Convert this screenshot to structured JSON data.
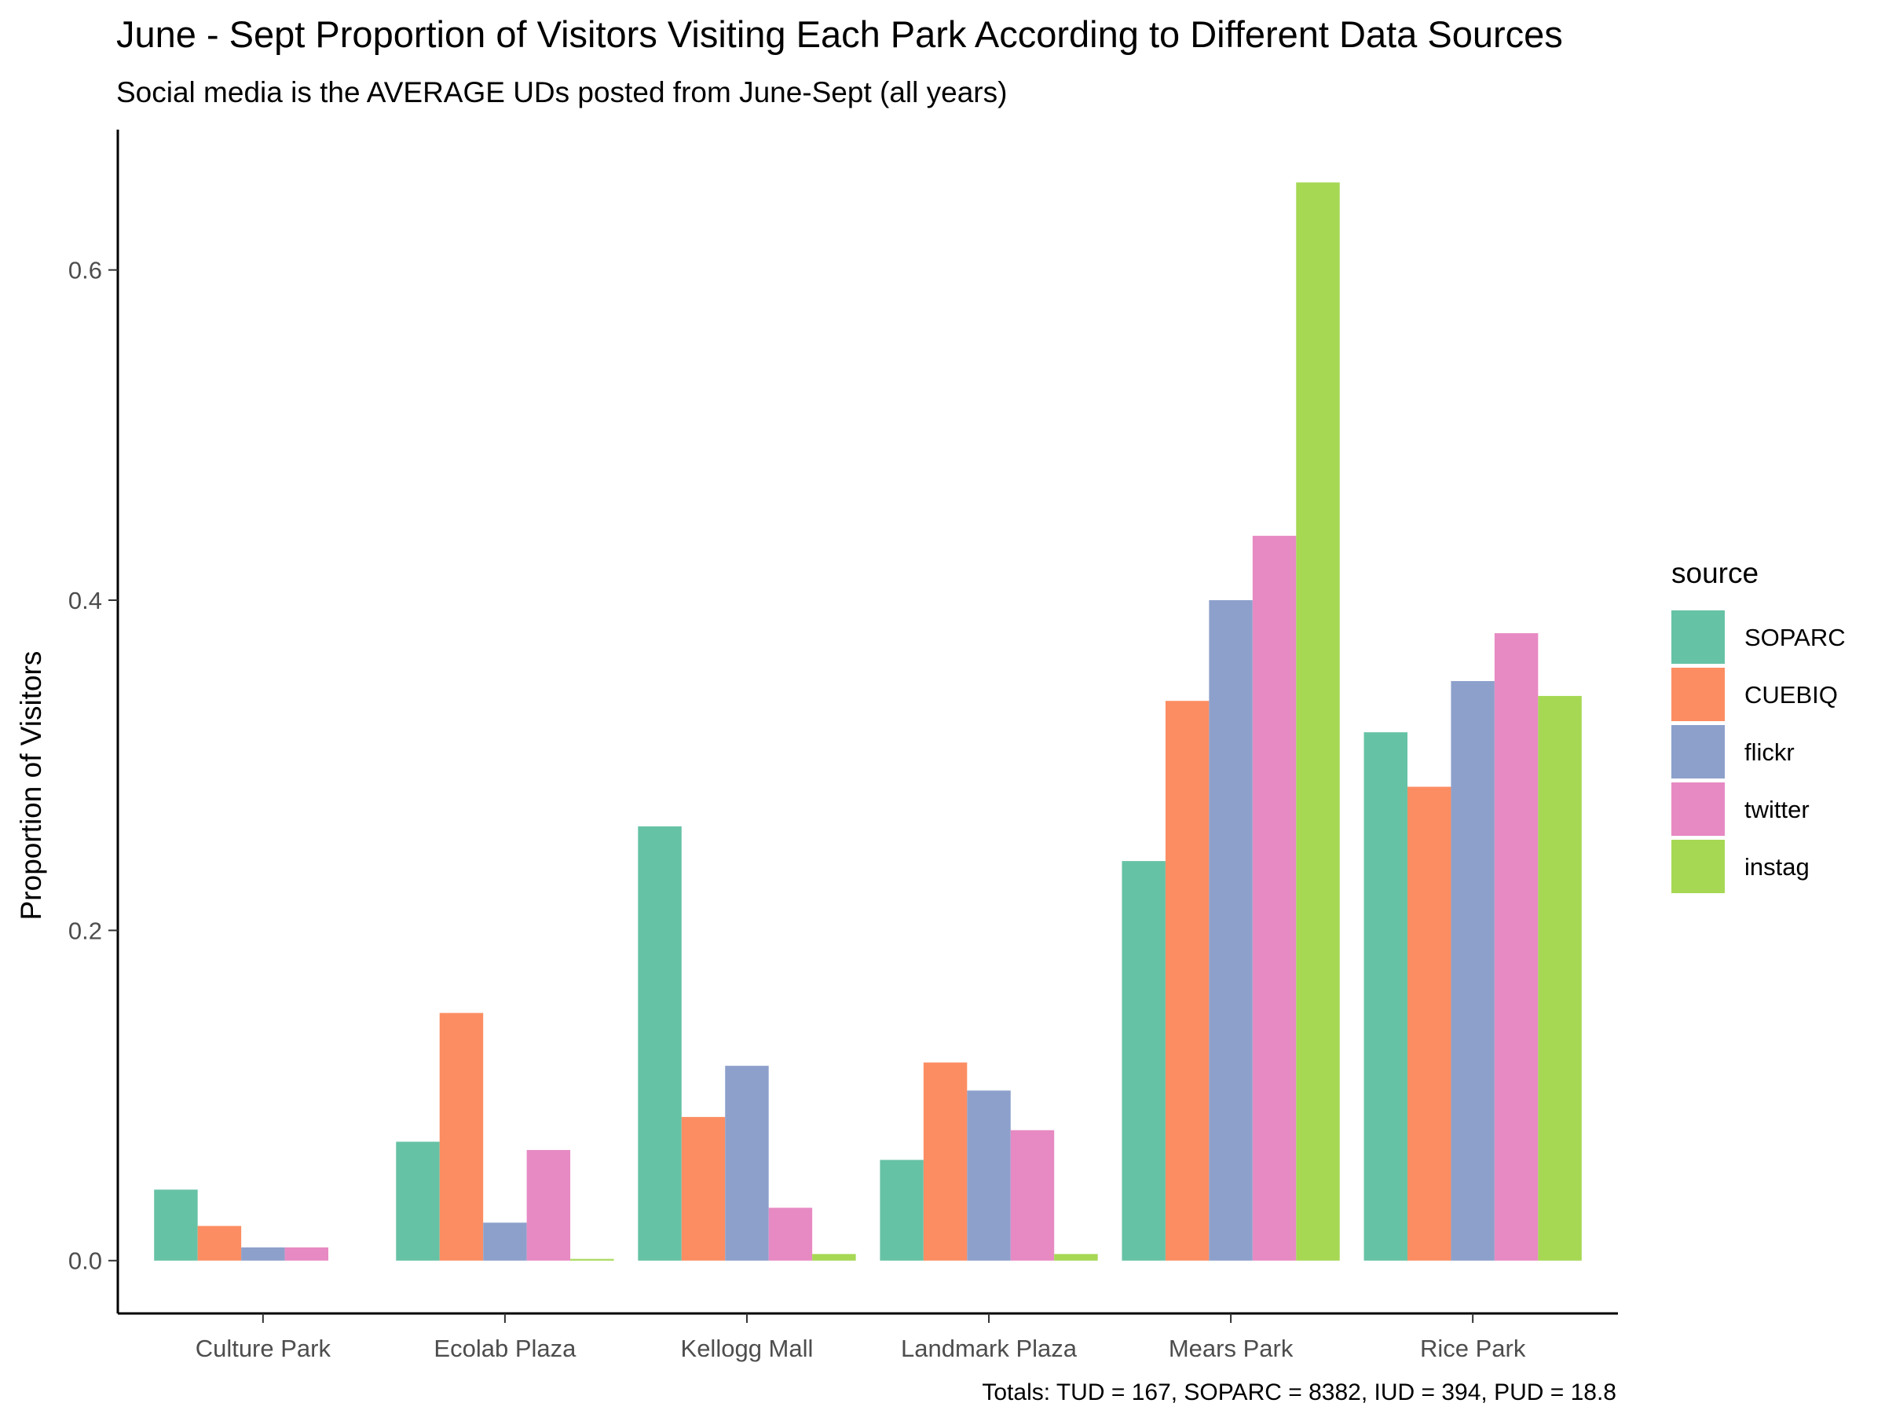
{
  "chart_data": {
    "type": "bar",
    "title": "June - Sept Proportion of Visitors Visiting Each Park According to Different Data Sources",
    "subtitle": "Social media is the AVERAGE UDs posted from June-Sept (all years)",
    "xlabel": "",
    "ylabel": "Proportion of Visitors",
    "caption": "Totals: TUD = 167, SOPARC = 8382, IUD = 394, PUD = 18.8",
    "categories": [
      "Culture Park",
      "Ecolab Plaza",
      "Kellogg Mall",
      "Landmark Plaza",
      "Mears Park",
      "Rice Park"
    ],
    "ylim": [
      -0.032,
      0.685
    ],
    "yticks": [
      0.0,
      0.2,
      0.4,
      0.6
    ],
    "ytick_labels": [
      "0.0",
      "0.2",
      "0.4",
      "0.6"
    ],
    "grid": false,
    "legend": {
      "title": "source",
      "position": "right"
    },
    "series": [
      {
        "name": "SOPARC",
        "color": "#66c2a5",
        "values": [
          0.043,
          0.072,
          0.263,
          0.061,
          0.242,
          0.32
        ]
      },
      {
        "name": "CUEBIQ",
        "color": "#fc8d62",
        "values": [
          0.021,
          0.15,
          0.087,
          0.12,
          0.339,
          0.287
        ]
      },
      {
        "name": "flickr",
        "color": "#8da0cb",
        "values": [
          0.008,
          0.023,
          0.118,
          0.103,
          0.4,
          0.351
        ]
      },
      {
        "name": "twitter",
        "color": "#e78ac3",
        "values": [
          0.008,
          0.067,
          0.032,
          0.079,
          0.439,
          0.38
        ]
      },
      {
        "name": "instag",
        "color": "#a6d854",
        "values": [
          0.0,
          0.001,
          0.004,
          0.004,
          0.653,
          0.342
        ]
      }
    ]
  }
}
